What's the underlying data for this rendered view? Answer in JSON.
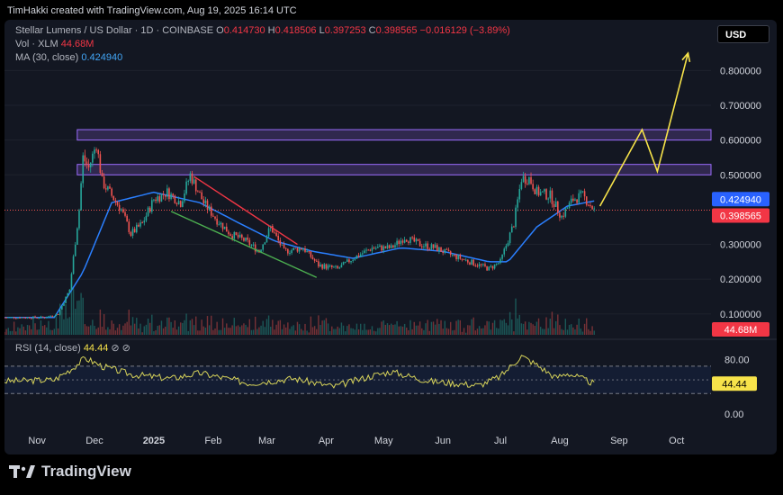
{
  "header": {
    "attribution": "TimHakki created with TradingView.com, Aug 19, 2025 16:14 UTC"
  },
  "legend": {
    "symbol": "Stellar Lumens / US Dollar · 1D · COINBASE",
    "o_label": "O",
    "o": "0.414730",
    "h_label": "H",
    "h": "0.418506",
    "l_label": "L",
    "l": "0.397253",
    "c_label": "C",
    "c": "0.398565",
    "change": "−0.016129 (−3.89%)",
    "vol_label": "Vol · XLM",
    "vol": "44.68M",
    "ma_label": "MA (30, close)",
    "ma": "0.424940",
    "rsi_label": "RSI (14, close)",
    "rsi": "44.44",
    "rsi_icons": "⊘ ⊘"
  },
  "currency_button": "USD",
  "badges": {
    "ma": "0.424940",
    "close": "0.398565",
    "vol": "44.68M",
    "rsi": "44.44"
  },
  "logo": {
    "text": "TradingView"
  },
  "colors": {
    "bg": "#131722",
    "up": "#26a69a",
    "down": "#ef5350",
    "ma": "#2a7fff",
    "zone": "#7e57c2",
    "projection": "#f7e34a",
    "rsi": "#d8d45a"
  },
  "chart_data": {
    "type": "line",
    "title": "Stellar Lumens / US Dollar · 1D · COINBASE",
    "y_axis": {
      "ticks": [
        "0.800000",
        "0.700000",
        "0.600000",
        "0.500000",
        "0.300000",
        "0.200000",
        "0.100000"
      ],
      "range": [
        0.04,
        0.92
      ],
      "position": "right"
    },
    "x_axis": {
      "ticks": [
        "Nov",
        "Dec",
        "2025",
        "Feb",
        "Mar",
        "Apr",
        "May",
        "Jun",
        "Jul",
        "Aug",
        "Sep",
        "Oct"
      ]
    },
    "price_series": {
      "name": "XLM/USD",
      "x": [
        "2024-10-15",
        "2024-11-05",
        "2024-11-12",
        "2024-11-18",
        "2024-11-23",
        "2024-11-25",
        "2024-11-28",
        "2024-12-02",
        "2024-12-05",
        "2024-12-10",
        "2024-12-15",
        "2024-12-20",
        "2024-12-26",
        "2025-01-01",
        "2025-01-08",
        "2025-01-15",
        "2025-01-20",
        "2025-01-27",
        "2025-02-03",
        "2025-02-10",
        "2025-02-18",
        "2025-02-25",
        "2025-03-03",
        "2025-03-10",
        "2025-03-20",
        "2025-03-28",
        "2025-04-07",
        "2025-04-15",
        "2025-04-25",
        "2025-05-05",
        "2025-05-12",
        "2025-05-20",
        "2025-05-28",
        "2025-06-05",
        "2025-06-15",
        "2025-06-25",
        "2025-07-01",
        "2025-07-08",
        "2025-07-12",
        "2025-07-16",
        "2025-07-20",
        "2025-07-27",
        "2025-08-02",
        "2025-08-08",
        "2025-08-13",
        "2025-08-19"
      ],
      "values": [
        0.09,
        0.09,
        0.1,
        0.17,
        0.4,
        0.55,
        0.52,
        0.59,
        0.48,
        0.44,
        0.4,
        0.33,
        0.36,
        0.43,
        0.45,
        0.42,
        0.5,
        0.42,
        0.37,
        0.33,
        0.31,
        0.28,
        0.35,
        0.28,
        0.29,
        0.24,
        0.23,
        0.26,
        0.29,
        0.29,
        0.32,
        0.3,
        0.29,
        0.27,
        0.25,
        0.23,
        0.25,
        0.36,
        0.49,
        0.49,
        0.45,
        0.44,
        0.38,
        0.43,
        0.44,
        0.399
      ]
    },
    "ma_series": {
      "name": "MA (30, close)",
      "x": [
        "2024-10-15",
        "2024-11-10",
        "2024-11-25",
        "2024-12-10",
        "2025-01-01",
        "2025-01-25",
        "2025-02-15",
        "2025-03-05",
        "2025-03-25",
        "2025-04-15",
        "2025-05-10",
        "2025-06-01",
        "2025-06-25",
        "2025-07-05",
        "2025-07-20",
        "2025-08-05",
        "2025-08-19"
      ],
      "values": [
        0.09,
        0.09,
        0.22,
        0.42,
        0.45,
        0.42,
        0.36,
        0.31,
        0.28,
        0.26,
        0.29,
        0.28,
        0.25,
        0.25,
        0.35,
        0.41,
        0.425
      ]
    },
    "resistance_zones": [
      {
        "from": 0.6,
        "to": 0.63
      },
      {
        "from": 0.5,
        "to": 0.53
      }
    ],
    "trendlines": [
      {
        "x": [
          "2025-01-22",
          "2025-03-17"
        ],
        "y": [
          0.495,
          0.3
        ]
      },
      {
        "x": [
          "2025-01-10",
          "2025-03-27"
        ],
        "y": [
          0.395,
          0.205
        ]
      }
    ],
    "projection": {
      "x": [
        "2025-08-22",
        "2025-09-13",
        "2025-09-21",
        "2025-10-07"
      ],
      "y": [
        0.41,
        0.63,
        0.51,
        0.85
      ]
    },
    "last_close": 0.398565,
    "ma_last": 0.42494,
    "volume": {
      "label": "Vol · XLM",
      "last": "44.68M"
    },
    "rsi": {
      "name": "RSI (14, close)",
      "ticks": [
        "80.00",
        "0.00"
      ],
      "bands": [
        70,
        30
      ],
      "mid": 50,
      "last": 44.44,
      "x": [
        "2024-10-15",
        "2024-11-10",
        "2024-11-20",
        "2024-11-26",
        "2024-12-05",
        "2024-12-20",
        "2025-01-10",
        "2025-01-25",
        "2025-02-20",
        "2025-03-15",
        "2025-04-05",
        "2025-04-25",
        "2025-05-05",
        "2025-05-25",
        "2025-06-20",
        "2025-07-01",
        "2025-07-12",
        "2025-07-20",
        "2025-07-30",
        "2025-08-05",
        "2025-08-19"
      ],
      "values": [
        48,
        50,
        68,
        82,
        70,
        58,
        52,
        60,
        45,
        52,
        40,
        56,
        62,
        48,
        42,
        55,
        85,
        72,
        53,
        60,
        44.44
      ]
    }
  }
}
